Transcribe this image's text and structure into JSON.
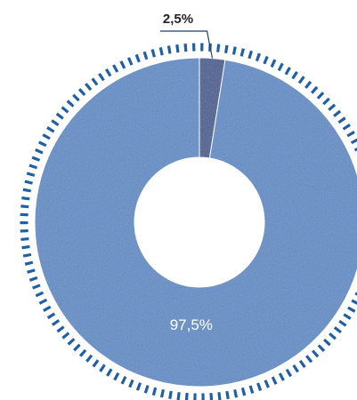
{
  "chart_data": {
    "type": "donut",
    "values": [
      2.5,
      97.5
    ],
    "value_labels": [
      "2,5%",
      "97,5%"
    ],
    "colors": [
      "#2c4c86",
      "#4f82bf"
    ]
  }
}
